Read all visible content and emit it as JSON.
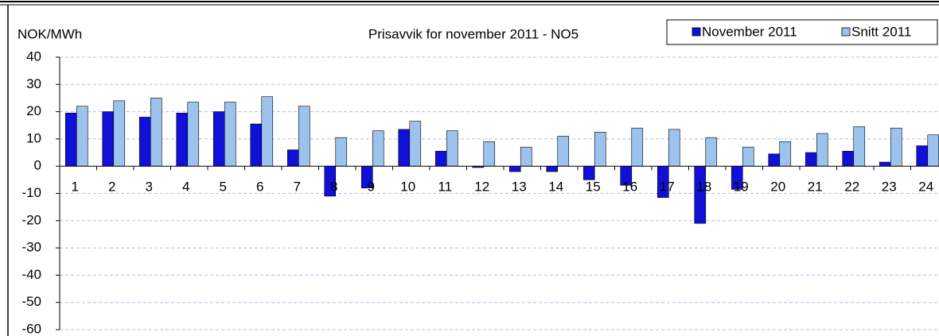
{
  "chart_data": {
    "type": "bar",
    "title": "Prisavvik for november 2011 - NO5",
    "y_label": "NOK/MWh",
    "categories": [
      "1",
      "2",
      "3",
      "4",
      "5",
      "6",
      "7",
      "8",
      "9",
      "10",
      "11",
      "12",
      "13",
      "14",
      "15",
      "16",
      "17",
      "18",
      "19",
      "20",
      "21",
      "22",
      "23",
      "24"
    ],
    "series": [
      {
        "name": "November 2011",
        "color": "#1010d8",
        "values": [
          19.5,
          20,
          18,
          19.5,
          20,
          15.5,
          6,
          -11,
          -8,
          13.5,
          5.5,
          -0.5,
          -2,
          -2,
          -5,
          -7,
          -11.5,
          -21,
          -8.5,
          4.5,
          5,
          5.5,
          1.5,
          7.5
        ]
      },
      {
        "name": "Snitt 2011",
        "color": "#9cc2ee",
        "values": [
          22,
          24,
          25,
          23.5,
          23.5,
          25.5,
          22,
          10.5,
          13,
          16.5,
          13,
          9,
          7,
          11,
          12.5,
          14,
          13.5,
          10.5,
          7,
          9,
          12,
          14.5,
          14,
          11.5
        ]
      }
    ],
    "ylim": [
      -60,
      40
    ],
    "yticks": [
      -60,
      -50,
      -40,
      -30,
      -20,
      -10,
      0,
      10,
      20,
      30,
      40
    ],
    "grid": true,
    "legend": "top-right"
  }
}
